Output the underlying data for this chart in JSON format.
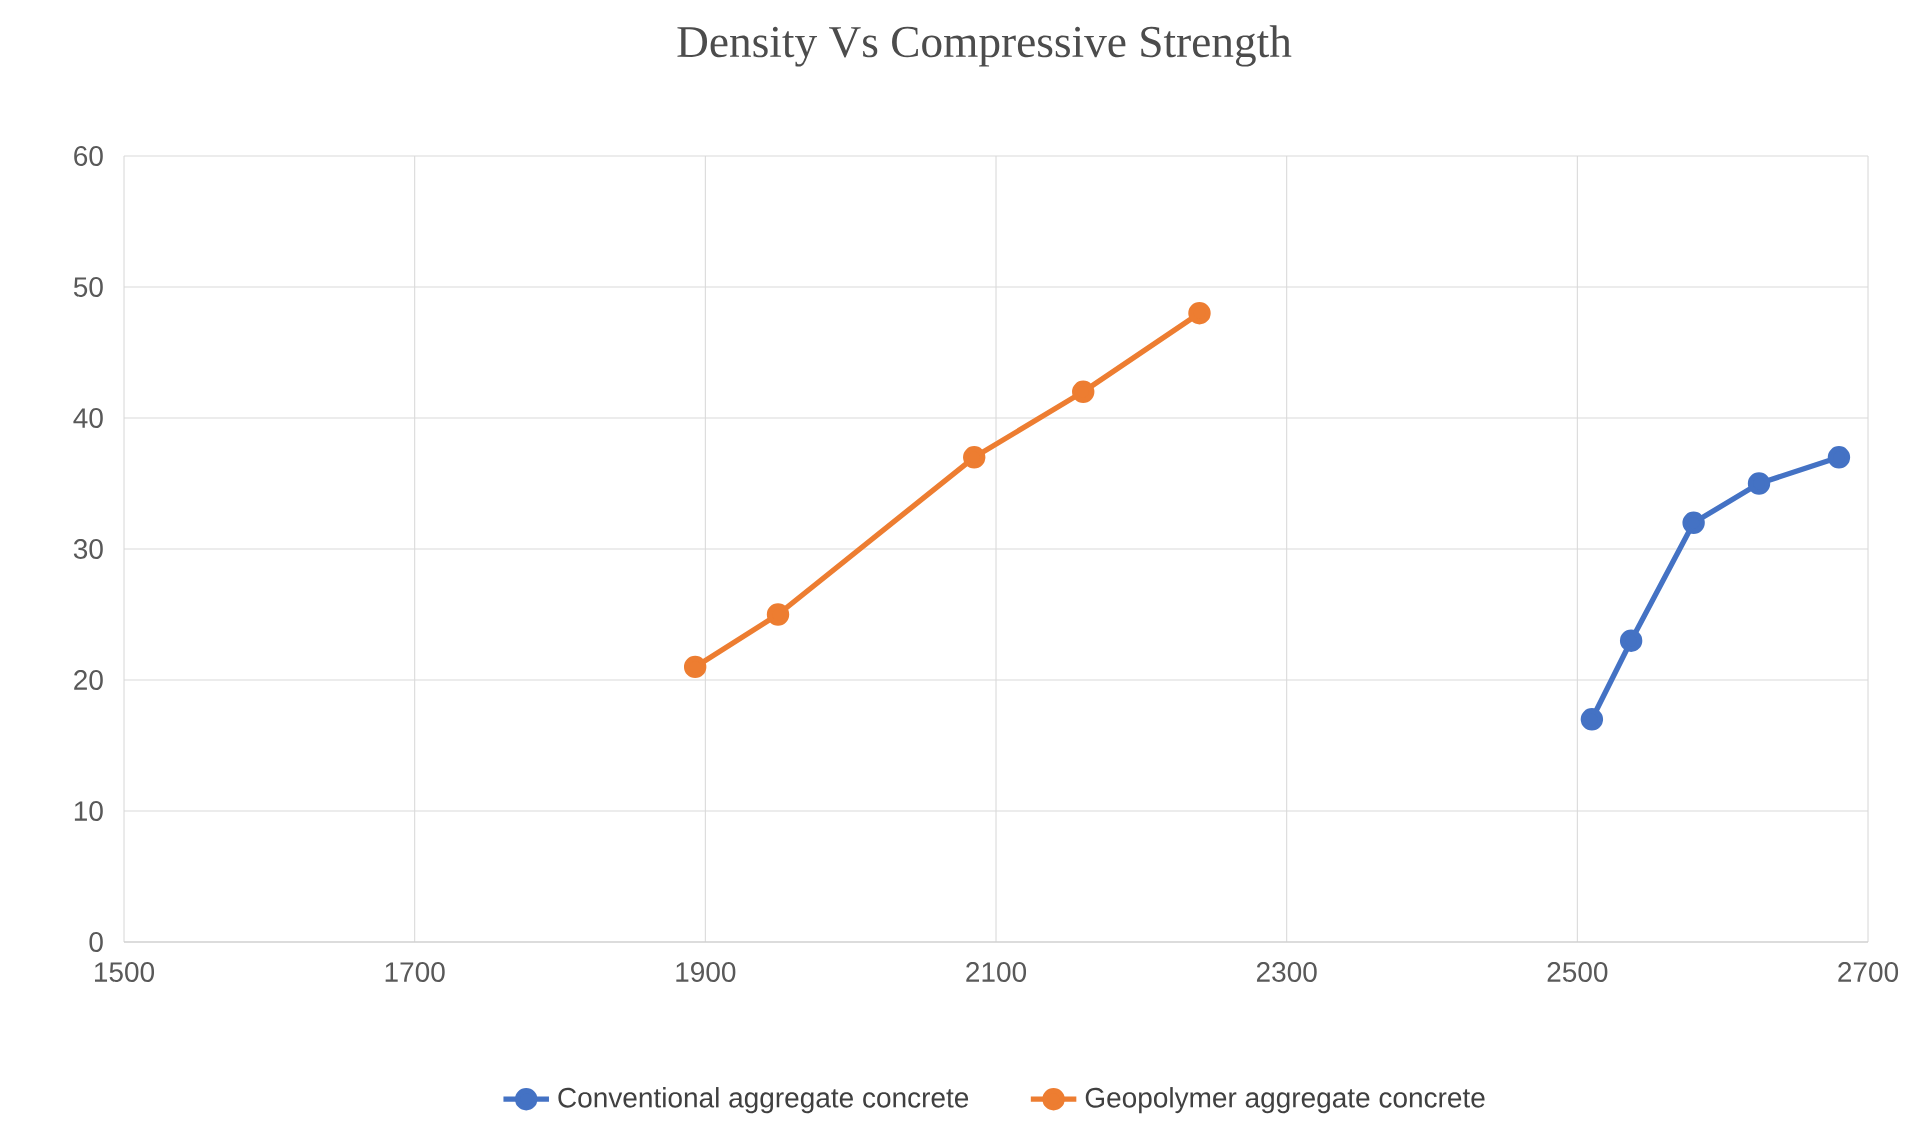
{
  "chart_data": {
    "type": "line",
    "title": "Density Vs Compressive Strength",
    "series": [
      {
        "name": "Conventional aggregate concrete",
        "color": "#4472c4",
        "x": [
          2510,
          2537,
          2580,
          2625,
          2680
        ],
        "values": [
          17,
          23,
          32,
          35,
          37
        ]
      },
      {
        "name": "Geopolymer aggregate concrete",
        "color": "#ed7d31",
        "x": [
          1893,
          1950,
          2085,
          2160,
          2240
        ],
        "values": [
          21,
          25,
          37,
          42,
          48
        ]
      }
    ],
    "xlim": [
      1500,
      2700
    ],
    "xticks": [
      1500,
      1700,
      1900,
      2100,
      2300,
      2500,
      2700
    ],
    "ylim": [
      0,
      60
    ],
    "yticks": [
      0,
      10,
      20,
      30,
      40,
      50,
      60
    ],
    "grid": true,
    "legend": "bottom",
    "marker": "circle",
    "line_style": "solid"
  }
}
